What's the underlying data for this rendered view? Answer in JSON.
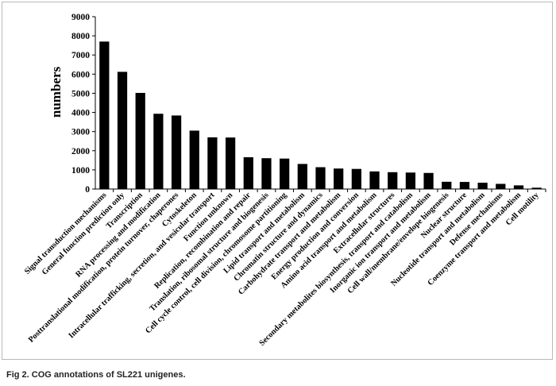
{
  "caption": "Fig 2. COG annotations of SL221 unigenes.",
  "chart_data": {
    "type": "bar",
    "title": "",
    "xlabel": "",
    "ylabel": "numbers",
    "ylim": [
      0,
      9000
    ],
    "yticks": [
      0,
      1000,
      2000,
      3000,
      4000,
      5000,
      6000,
      7000,
      8000,
      9000
    ],
    "grid": false,
    "legend": "none",
    "bar_color": "#000000",
    "categories": [
      "Signal transduction mechanisms",
      "General function prediction only",
      "Transcription",
      "RNA processing and modification",
      "Posttranslational modification, protein turnover, chaperones",
      "Cytoskeleton",
      "Intracellular trafficking, secretion, and vesicular transport",
      "Function unknown",
      "Replication, recombination and repair",
      "Translation, ribosomal structure and biogenesis",
      "Cell cycle control, cell division, chromosome partitioning",
      "Lipid transport and metabolism",
      "Chromatin structure and dynamics",
      "Carbohydrate transport and metabolism",
      "Energy production and conversion",
      "Amino acid transport and metabolism",
      "Extracellular structures",
      "Secondary metabolites biosynthesis, transport and catabolism",
      "Inorganic ion transport and metabolism",
      "Cell wall/membrane/envelope biogenesis",
      "Nuclear structure",
      "Nucleotide transport and metabolism",
      "Defense mechanisms",
      "Coenzyme transport and metabolism",
      "Cell motility"
    ],
    "values": [
      7700,
      6120,
      5020,
      3930,
      3840,
      3050,
      2700,
      2690,
      1660,
      1610,
      1590,
      1310,
      1140,
      1070,
      1050,
      920,
      880,
      860,
      840,
      380,
      370,
      330,
      270,
      190,
      70
    ]
  }
}
